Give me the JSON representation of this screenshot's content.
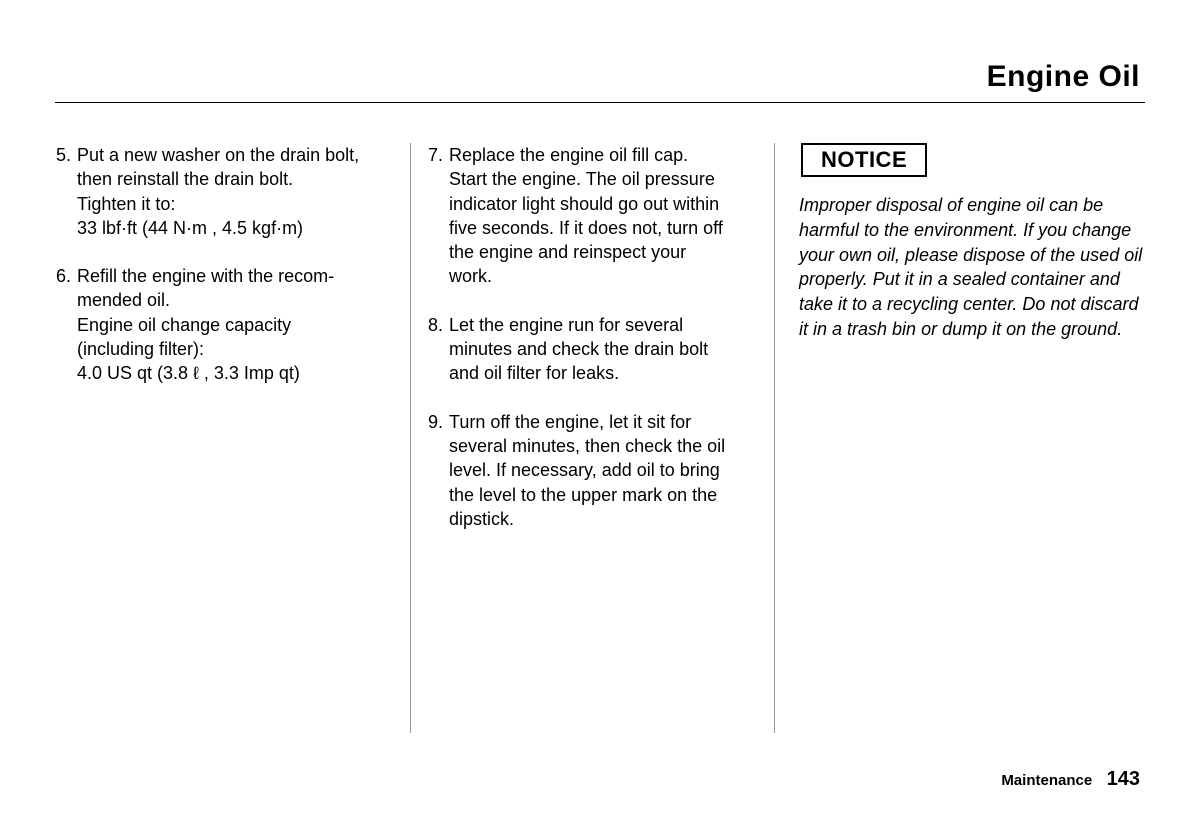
{
  "header": {
    "title": "Engine Oil"
  },
  "columns": {
    "col1": {
      "steps": [
        {
          "num": "5.",
          "lines": [
            "Put a new washer on the drain bolt,",
            "then reinstall the drain bolt.",
            "Tighten it to:",
            "33 lbf·ft (44 N·m , 4.5 kgf·m)"
          ]
        },
        {
          "num": "6.",
          "lines": [
            "Refill the engine with the recom-",
            "mended oil.",
            "Engine oil change capacity",
            "(including filter):",
            "4.0 US qt (3.8 ℓ , 3.3 Imp qt)"
          ]
        }
      ]
    },
    "col2": {
      "steps": [
        {
          "num": "7.",
          "lines": [
            "Replace the engine oil fill cap.",
            "Start the engine. The oil pressure",
            "indicator light should go out within",
            "five seconds. If it does not, turn off",
            "the engine and reinspect your",
            "work."
          ]
        },
        {
          "num": "8.",
          "lines": [
            "Let the engine run for several",
            "minutes and check the drain bolt",
            "and oil filter for leaks."
          ]
        },
        {
          "num": "9.",
          "lines": [
            "Turn off the engine, let it sit for",
            "several minutes, then check the oil",
            "level. If necessary, add oil to bring",
            "the level to the upper mark on the",
            "dipstick."
          ]
        }
      ]
    },
    "col3": {
      "notice_label": "NOTICE",
      "notice_text": "Improper disposal of engine oil can be harmful to the environment. If you change your own oil, please dispose of the used oil properly. Put it in a sealed container and take it to a recycling center. Do not discard it in a trash bin or dump it on the ground."
    }
  },
  "footer": {
    "section": "Maintenance",
    "page": "143"
  },
  "style": {
    "page_bg": "#ffffff",
    "text_color": "#000000",
    "divider_color": "#999999",
    "title_fontsize": 30,
    "body_fontsize": 18,
    "notice_fontsize": 18,
    "footer_section_fontsize": 15,
    "footer_page_fontsize": 20
  }
}
